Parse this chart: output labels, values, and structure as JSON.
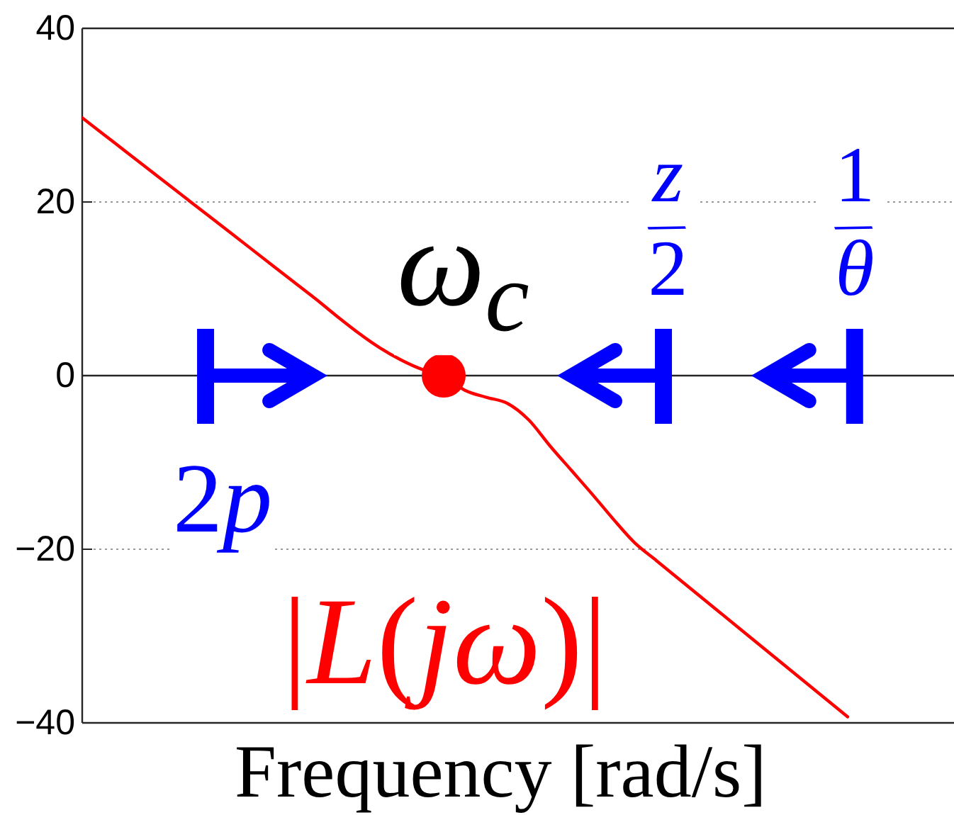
{
  "chart_data": {
    "type": "line",
    "xlabel": "Frequency [rad/s]",
    "categories": [
      null,
      null,
      null,
      null,
      null,
      null,
      null,
      null,
      null,
      null,
      null,
      null,
      null,
      null,
      null,
      null,
      null,
      null,
      null,
      null,
      null,
      null,
      null,
      null,
      null,
      null,
      null,
      null,
      null,
      null,
      null,
      null,
      null,
      null,
      null,
      null,
      null,
      null,
      null,
      null,
      null,
      null
    ],
    "ylim": [
      -40,
      40
    ],
    "yticks": [
      -40,
      -20,
      0,
      20,
      40
    ],
    "grid": "y",
    "ref_lines": [
      {
        "axis": "y",
        "value": 0,
        "color": "#262626"
      }
    ],
    "series": [
      {
        "name": "|L(jω)|",
        "color": "#ff0000",
        "values": [
          29.7,
          27.8,
          25.9,
          24.0,
          22.1,
          20.2,
          18.3,
          16.4,
          14.5,
          12.6,
          10.7,
          8.8,
          6.8,
          4.9,
          3.2,
          1.8,
          0.7,
          0,
          -1.7,
          -2.5,
          -3.2,
          -5.1,
          -8.1,
          -10.9,
          -13.7,
          -16.6,
          -19.3,
          -21.3,
          -23.3,
          -25.3,
          -27.3,
          -29.3,
          -31.3,
          -33.3,
          -35.3,
          -37.3,
          -39.3,
          null,
          null,
          null,
          null,
          null
        ]
      },
      {
        "type": "scatter",
        "color": "#ff0000",
        "marker": "circle",
        "values": [
          null,
          null,
          null,
          null,
          null,
          null,
          null,
          null,
          null,
          null,
          null,
          null,
          null,
          null,
          null,
          null,
          null,
          0,
          null,
          null,
          null,
          null,
          null,
          null,
          null,
          null,
          null,
          null,
          null,
          null,
          null,
          null,
          null,
          null,
          null,
          null,
          null,
          null,
          null,
          null,
          null,
          null
        ]
      }
    ],
    "annotations": [
      {
        "text": "ω$_{c}$",
        "y": 0
      },
      {
        "text": "2p",
        "y": 0
      },
      {
        "text": "$^{z}$/$_{2}$",
        "y": 0
      },
      {
        "text": "$^{1}$/$_{θ}$",
        "y": 0
      }
    ]
  }
}
